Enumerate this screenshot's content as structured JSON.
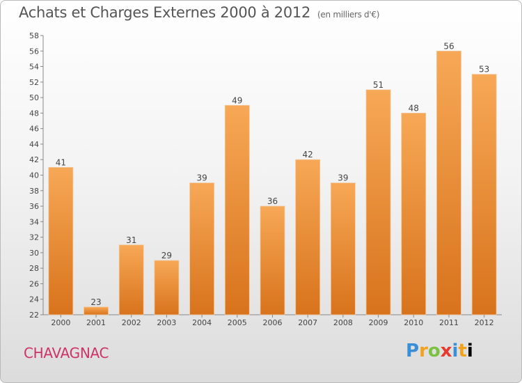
{
  "title": "Achats et Charges Externes 2000 à 2012",
  "unit_label": "(en milliers d'€)",
  "town": "CHAVAGNAC",
  "logo_text": "Proxiti",
  "colors": {
    "bar_top": "#f7a856",
    "bar_bottom": "#d8731c",
    "town": "#cc3366",
    "text": "#555555"
  },
  "chart_data": {
    "type": "bar",
    "title": "Achats et Charges Externes 2000 à 2012",
    "subtitle": "(en milliers d'€)",
    "xlabel": "",
    "ylabel": "",
    "categories": [
      "2000",
      "2001",
      "2002",
      "2003",
      "2004",
      "2005",
      "2006",
      "2007",
      "2008",
      "2009",
      "2010",
      "2011",
      "2012"
    ],
    "values": [
      41,
      23,
      31,
      29,
      39,
      49,
      36,
      42,
      39,
      51,
      48,
      56,
      53
    ],
    "ylim": [
      22,
      58
    ],
    "ytick_step": 2,
    "grid": false,
    "legend": "none"
  }
}
